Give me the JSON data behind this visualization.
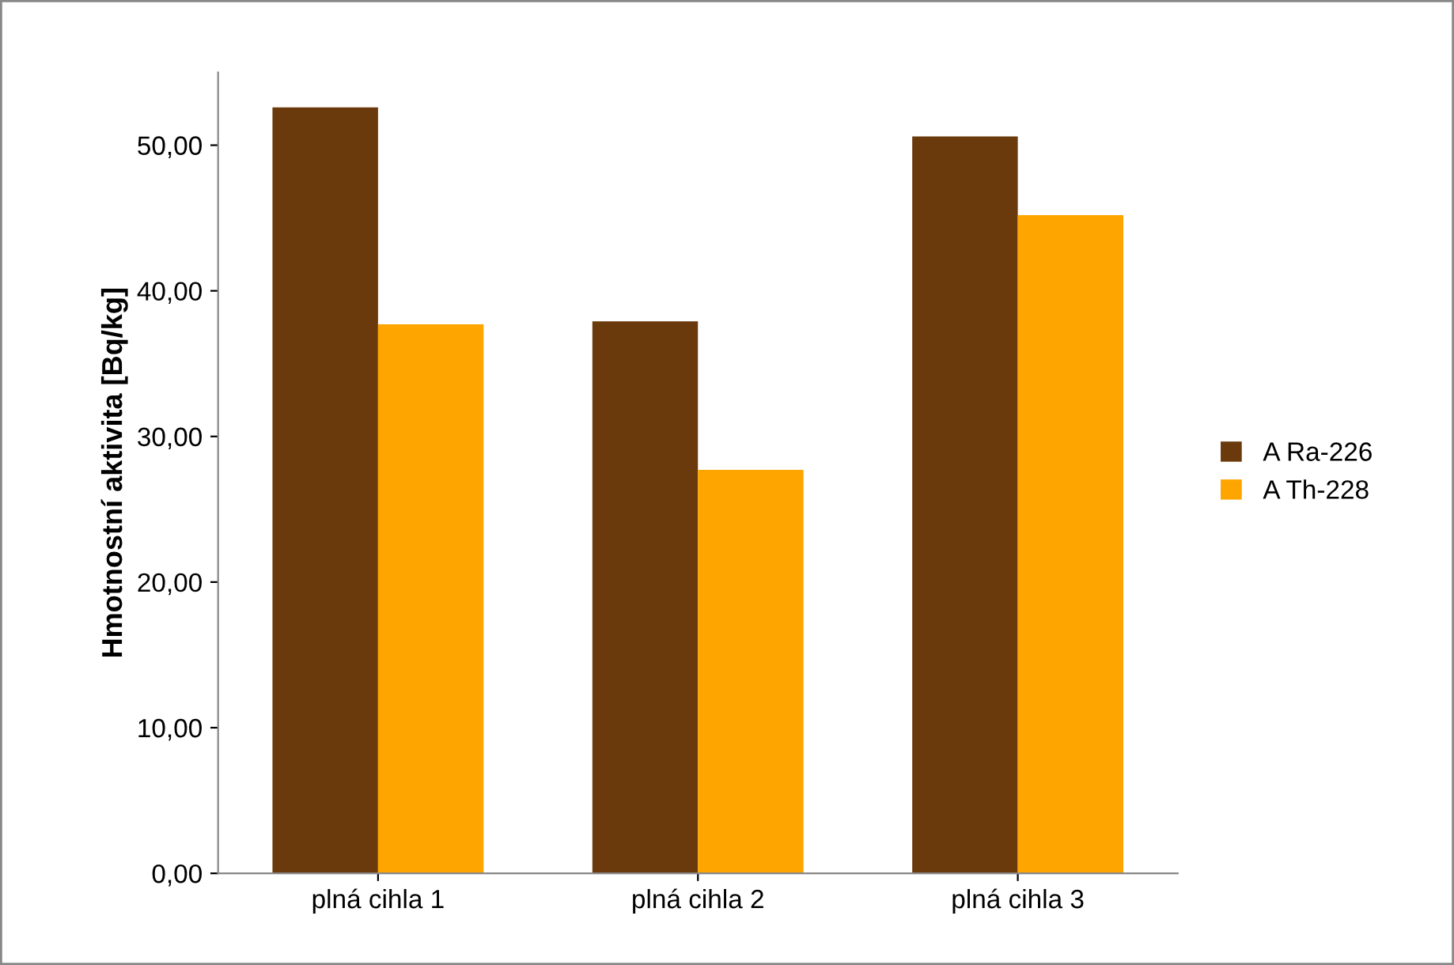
{
  "chart_data": {
    "type": "bar",
    "ylabel": "Hmotnostní aktivita [Bq/kg]",
    "categories": [
      "plná cihla 1",
      "plná cihla 2",
      "plná cihla 3"
    ],
    "series": [
      {
        "name": "A Ra-226",
        "color": "#6b3a0c",
        "values": [
          52.6,
          37.9,
          50.6
        ]
      },
      {
        "name": "A Th-228",
        "color": "#ffa500",
        "values": [
          37.7,
          27.7,
          45.2
        ]
      }
    ],
    "ylim": [
      0,
      55
    ],
    "yticks": [
      {
        "value": 0,
        "label": "0,00"
      },
      {
        "value": 10,
        "label": "10,00"
      },
      {
        "value": 20,
        "label": "20,00"
      },
      {
        "value": 30,
        "label": "30,00"
      },
      {
        "value": 40,
        "label": "40,00"
      },
      {
        "value": 50,
        "label": "50,00"
      }
    ],
    "grid": false,
    "legend": "right"
  }
}
